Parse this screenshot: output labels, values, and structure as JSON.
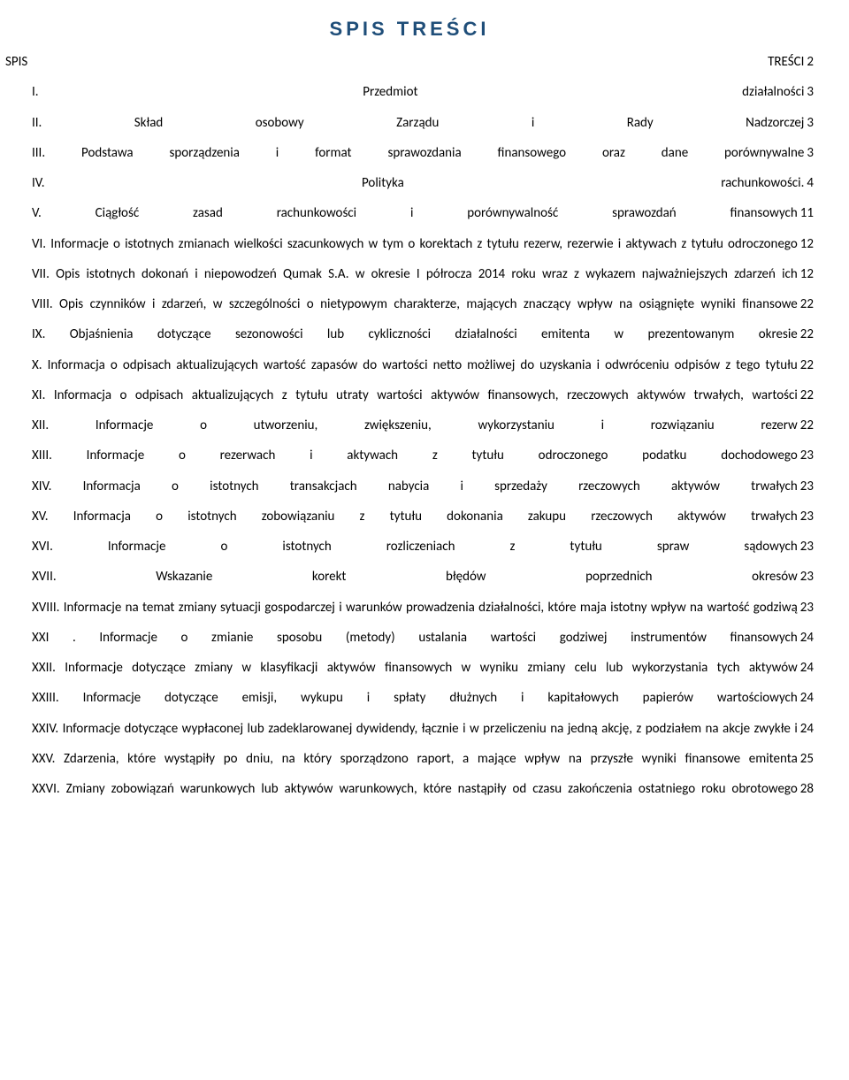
{
  "title": "SPIS TREŚCI",
  "title_color": "#1f4e79",
  "entries": [
    {
      "label": "SPIS TREŚCI",
      "page": "2",
      "indent": 0
    },
    {
      "label": "I.",
      "text": "Przedmiot działalności",
      "page": "3",
      "indent": 1
    },
    {
      "label": "II. Skład osobowy Zarządu i Rady Nadzorczej",
      "page": "3",
      "indent": 1
    },
    {
      "label": "III. Podstawa sporządzenia i format sprawozdania finansowego oraz dane porównywalne",
      "page": "3",
      "indent": 1
    },
    {
      "label": "IV. Polityka rachunkowości.",
      "page": "4",
      "indent": 1
    },
    {
      "label": "V. Ciągłość zasad rachunkowości i porównywalność sprawozdań finansowych",
      "page": "11",
      "indent": 1
    },
    {
      "label": "VI. Informacje o istotnych zmianach wielkości szacunkowych w tym o korektach z tytułu rezerw, rezerwie i aktywach z tytułu odroczonego podatku dochodowego.",
      "page": "12",
      "indent": 1
    },
    {
      "label": "VII. Opis istotnych dokonań i niepowodzeń Qumak S.A. w okresie I półrocza 2014 roku wraz z wykazem najważniejszych zdarzeń ich dotyczących.",
      "page": "12",
      "indent": 1
    },
    {
      "label": "VIII. Opis czynników i zdarzeń, w szczególności o nietypowym charakterze, mających znaczący wpływ na osiągnięte wyniki finansowe",
      "page": "22",
      "indent": 1
    },
    {
      "label": "IX. Objaśnienia dotyczące sezonowości lub cykliczności działalności emitenta w prezentowanym okresie",
      "page": "22",
      "indent": 1
    },
    {
      "label": "X. Informacja o odpisach aktualizujących wartość zapasów do wartości netto możliwej do uzyskania i odwróceniu odpisów z tego tytułu",
      "page": "22",
      "indent": 1
    },
    {
      "label": "XI. Informacja o odpisach aktualizujących z tytułu utraty wartości aktywów finansowych, rzeczowych aktywów trwałych, wartości niematerialnych i prawnych lub innych aktywów oraz odwróceniu tych odpisów",
      "page": "22",
      "indent": 1
    },
    {
      "label": "XII. Informacje o utworzeniu, zwiększeniu, wykorzystaniu i rozwiązaniu rezerw",
      "page": "22",
      "indent": 1
    },
    {
      "label": "XIII. Informacje o rezerwach i aktywach z tytułu odroczonego podatku dochodowego",
      "page": "23",
      "indent": 1
    },
    {
      "label": "XIV. Informacja o istotnych transakcjach nabycia i sprzedaży rzeczowych aktywów trwałych",
      "page": "23",
      "indent": 1
    },
    {
      "label": "XV. Informacja o istotnych zobowiązaniu z tytułu dokonania zakupu rzeczowych aktywów trwałych",
      "page": "23",
      "indent": 1
    },
    {
      "label": "XVI. Informacje o istotnych rozliczeniach z tytułu spraw sądowych",
      "page": "23",
      "indent": 1
    },
    {
      "label": "XVII. Wskazanie korekt błędów poprzednich okresów",
      "page": "23",
      "indent": 1
    },
    {
      "label": "XVIII. Informacje na temat zmiany sytuacji gospodarczej i warunków prowadzenia działalności, które maja istotny wpływ na wartość godziwą aktywów finansowych jednostki",
      "page": "23",
      "indent": 1
    },
    {
      "label": "XXI . Informacje o zmianie sposobu (metody) ustalania wartości godziwej instrumentów finansowych",
      "page": "24",
      "indent": 1
    },
    {
      "label": "XXII. Informacje dotyczące zmiany w klasyfikacji aktywów finansowych w wyniku zmiany celu lub wykorzystania tych aktywów",
      "page": "24",
      "indent": 1
    },
    {
      "label": "XXIII. Informacje dotyczące emisji, wykupu i spłaty dłużnych i kapitałowych papierów wartościowych",
      "page": "24",
      "indent": 1
    },
    {
      "label": "XXIV. Informacje dotyczące wypłaconej lub zadeklarowanej dywidendy, łącznie i w przeliczeniu na jedną akcję, z podziałem na akcje zwykłe i uprzywilejowane",
      "page": "24",
      "indent": 1
    },
    {
      "label": "XXV. Zdarzenia, które wystąpiły po dniu, na który sporządzono raport, a mające wpływ na przyszłe wyniki finansowe emitenta",
      "page": "25",
      "indent": 1
    },
    {
      "label": "XXVI. Zmiany zobowiązań warunkowych lub aktywów warunkowych, które nastąpiły od czasu zakończenia ostatniego roku obrotowego",
      "page": "28",
      "indent": 1
    }
  ]
}
